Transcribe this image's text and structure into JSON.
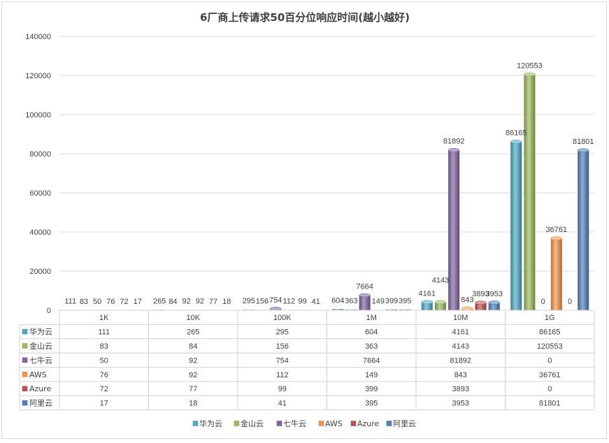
{
  "chart_data": {
    "type": "bar",
    "title": "6厂商上传请求50百分位响应时间(越小越好)",
    "categories": [
      "1K",
      "10K",
      "100K",
      "1M",
      "10M",
      "1G"
    ],
    "series": [
      {
        "name": "华为云",
        "color": "#4BACC6",
        "values": [
          111,
          265,
          295,
          604,
          4161,
          86165
        ]
      },
      {
        "name": "金山云",
        "color": "#9BBB59",
        "values": [
          83,
          84,
          156,
          363,
          4143,
          120553
        ]
      },
      {
        "name": "七牛云",
        "color": "#8064A2",
        "values": [
          50,
          92,
          754,
          7664,
          81892,
          0
        ]
      },
      {
        "name": "AWS",
        "color": "#F79646",
        "values": [
          76,
          92,
          112,
          149,
          843,
          36761
        ]
      },
      {
        "name": "Azure",
        "color": "#C0504D",
        "values": [
          72,
          77,
          99,
          399,
          3893,
          0
        ]
      },
      {
        "name": "阿里云",
        "color": "#4F81BD",
        "values": [
          17,
          18,
          41,
          395,
          3953,
          81801
        ]
      }
    ],
    "ylim": [
      0,
      140000
    ],
    "yticks": [
      0,
      20000,
      40000,
      60000,
      80000,
      100000,
      120000,
      140000
    ],
    "grid": true,
    "legend": "bottom",
    "data_labels": true,
    "data_table": true
  }
}
